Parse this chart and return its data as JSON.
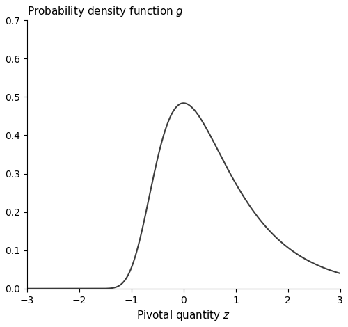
{
  "n": 2,
  "S": 0.5,
  "xlim": [
    -3,
    3
  ],
  "ylim": [
    0,
    0.7
  ],
  "xlabel": "Pivotal quantity $z$",
  "title": "Probability density function $g$",
  "line_color": "#3c3c3c",
  "line_width": 1.5,
  "xticks": [
    -3,
    -2,
    -1,
    0,
    1,
    2,
    3
  ],
  "yticks": [
    0.0,
    0.1,
    0.2,
    0.3,
    0.4,
    0.5,
    0.6,
    0.7
  ],
  "background_color": "#ffffff",
  "figsize": [
    5.0,
    4.7
  ],
  "dpi": 100
}
